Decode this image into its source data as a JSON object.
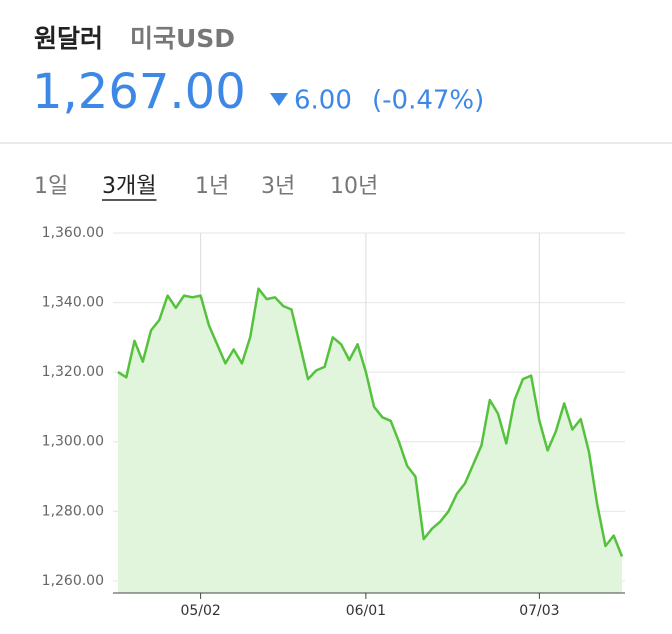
{
  "header": {
    "title": "원달러",
    "subtitle": "미국USD",
    "price": "1,267.00",
    "change": "6.00",
    "change_pct": "(-0.47%)"
  },
  "tabs": {
    "items": [
      "1일",
      "3개월",
      "1년",
      "3년",
      "10년"
    ],
    "selected": 1
  },
  "chart_data": {
    "type": "line",
    "categories": [
      null,
      null,
      null,
      null,
      null,
      null,
      null,
      null,
      null,
      null,
      "05/02",
      null,
      null,
      null,
      null,
      null,
      null,
      null,
      null,
      null,
      null,
      null,
      null,
      null,
      null,
      null,
      null,
      null,
      null,
      null,
      "06/01",
      null,
      null,
      null,
      null,
      null,
      null,
      null,
      null,
      null,
      null,
      null,
      null,
      null,
      null,
      null,
      null,
      null,
      null,
      null,
      null,
      "07/03",
      null,
      null,
      null,
      null,
      null,
      null,
      null,
      null,
      null,
      null
    ],
    "series": [
      {
        "name": "원달러",
        "color": "#55c23d",
        "values": [
          1320,
          1318.5,
          1329,
          1323,
          1332,
          1335,
          1342,
          1338.5,
          1342,
          1341.5,
          1342,
          1333.5,
          1328,
          1322.5,
          1326.5,
          1322.5,
          1330,
          1344,
          1341,
          1341.5,
          1339,
          1338,
          1328,
          1318,
          1320.5,
          1321.5,
          1330,
          1328,
          1323.5,
          1328,
          1320,
          1310,
          1307,
          1306,
          1300,
          1293,
          1290,
          1272,
          1275,
          1277,
          1280,
          1285,
          1288,
          1293.5,
          1299,
          1312,
          1308,
          1299.5,
          1312,
          1318,
          1319,
          1306,
          1297.5,
          1303,
          1311,
          1303.5,
          1306.5,
          1297,
          1282,
          1270,
          1273,
          1267
        ]
      }
    ],
    "ylim": [
      1256.5,
      1360
    ],
    "yticks": [
      {
        "value": 1260,
        "label": "1,260.00"
      },
      {
        "value": 1280,
        "label": "1,280.00"
      },
      {
        "value": 1300,
        "label": "1,300.00"
      },
      {
        "value": 1320,
        "label": "1,320.00"
      },
      {
        "value": 1340,
        "label": "1,340.00"
      },
      {
        "value": 1360,
        "label": "1,360.00"
      }
    ],
    "grid": true,
    "area_color": "#e0f5dc"
  }
}
